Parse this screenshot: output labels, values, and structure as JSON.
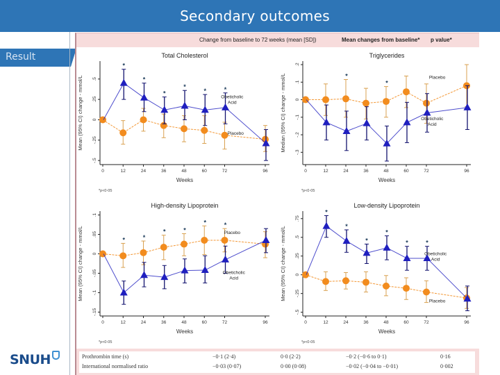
{
  "slide": {
    "title": "Secondary outcomes",
    "section_tab": "Result",
    "logo_text": "SNUH"
  },
  "table_header": {
    "col1": "Change from baseline to 72 weeks (mean [SD])",
    "col2": "Mean changes from baseline*",
    "col3": "p value*"
  },
  "table_rows": [
    {
      "label": "Prothrombin time (s)",
      "oca": "−0·1 (2·4)",
      "placebo": "0·0 (2·2)",
      "diff": "−0·2 (−0·6 to 0·1)",
      "p": "0·16"
    },
    {
      "label": "International normalised ratio",
      "oca": "−0·03 (0·07)",
      "placebo": "0·00 (0·08)",
      "diff": "−0·02 (−0·04 to −0·01)",
      "p": "0·002"
    }
  ],
  "colors": {
    "header_blue": "#2e75b6",
    "oca": "#1f1fbf",
    "oca_err": "#12126e",
    "placebo": "#f28c1e",
    "placebo_err": "#d9a150",
    "band_pink": "#f7dcdc"
  },
  "chart_data": [
    {
      "type": "line",
      "title": "Total Cholesterol",
      "xlabel": "Weeks",
      "ylabel": "Mean (95% CI) change - mmol/L",
      "x": [
        0,
        12,
        24,
        36,
        48,
        60,
        72,
        96
      ],
      "xticks": [
        "0",
        "12",
        "24",
        "36",
        "48",
        "60",
        "72",
        "96"
      ],
      "ylim": [
        -0.55,
        0.72
      ],
      "yticks": [
        -0.5,
        -0.25,
        0,
        0.25,
        0.5
      ],
      "ytick_labels": [
        "-.5",
        "-.25",
        "0",
        ".25",
        ".5"
      ],
      "footnote": "*p<0·05",
      "series": [
        {
          "name": "Obeticholic Acid",
          "label_lines": [
            "Obeticholic",
            "Acid"
          ],
          "marker": "triangle",
          "values": [
            0,
            0.45,
            0.27,
            0.12,
            0.17,
            0.12,
            0.15,
            -0.29
          ],
          "ci_low": [
            0,
            0.25,
            0.1,
            -0.05,
            0.0,
            -0.07,
            -0.05,
            -0.5
          ],
          "ci_high": [
            0,
            0.62,
            0.45,
            0.28,
            0.36,
            0.31,
            0.33,
            -0.12
          ]
        },
        {
          "name": "Placebo",
          "label_lines": [
            "Placebo"
          ],
          "marker": "circle",
          "values": [
            0,
            -0.16,
            0,
            -0.07,
            -0.11,
            -0.13,
            -0.19,
            -0.24
          ],
          "ci_low": [
            0,
            -0.3,
            -0.14,
            -0.22,
            -0.27,
            -0.29,
            -0.36,
            -0.39
          ],
          "ci_high": [
            0,
            -0.01,
            0.14,
            0.07,
            0.05,
            0.05,
            -0.03,
            -0.07
          ]
        }
      ],
      "significant": [
        12,
        24,
        36,
        48,
        60,
        72
      ]
    },
    {
      "type": "line",
      "title": "Triglycerides",
      "xlabel": "Weeks",
      "ylabel": "Median (95% CI) change - mmol/L",
      "x": [
        0,
        12,
        24,
        36,
        48,
        60,
        72,
        96
      ],
      "xticks": [
        "0",
        "12",
        "24",
        "36",
        "48",
        "60",
        "72",
        "96"
      ],
      "ylim": [
        -0.37,
        0.22
      ],
      "yticks": [
        -0.3,
        -0.2,
        -0.1,
        0,
        0.1,
        0.2
      ],
      "ytick_labels": [
        "-.3",
        "-.2",
        "-.1",
        "0",
        ".1",
        ".2"
      ],
      "footnote": "*p<0·05",
      "series": [
        {
          "name": "Obeticholic Acid",
          "label_lines": [
            "Obeticholic",
            "Acid"
          ],
          "marker": "triangle",
          "values": [
            0,
            -0.13,
            -0.18,
            -0.135,
            -0.25,
            -0.13,
            -0.075,
            -0.045
          ],
          "ci_low": [
            0,
            -0.23,
            -0.29,
            -0.23,
            -0.35,
            -0.245,
            -0.185,
            -0.17
          ],
          "ci_high": [
            0,
            -0.03,
            -0.065,
            -0.04,
            -0.15,
            -0.015,
            0.035,
            0.08
          ]
        },
        {
          "name": "Placebo",
          "label_lines": [
            "Placebo"
          ],
          "marker": "circle",
          "values": [
            0,
            0,
            0.005,
            -0.02,
            -0.01,
            0.045,
            -0.02,
            0.08
          ],
          "ci_low": [
            0,
            -0.09,
            -0.1,
            -0.11,
            -0.1,
            -0.045,
            -0.135,
            -0.04
          ],
          "ci_high": [
            0,
            0.09,
            0.115,
            0.065,
            0.075,
            0.135,
            0.09,
            0.2
          ]
        }
      ],
      "significant": [
        24,
        48
      ]
    },
    {
      "type": "line",
      "title": "High-density Lipoprotein",
      "xlabel": "Weeks",
      "ylabel": "Mean (95% CI) change - mmol/L",
      "x": [
        0,
        12,
        24,
        36,
        48,
        60,
        72,
        96
      ],
      "xticks": [
        "0",
        "12",
        "24",
        "36",
        "48",
        "60",
        "72",
        "96"
      ],
      "ylim": [
        -0.16,
        0.11
      ],
      "yticks": [
        -0.15,
        -0.1,
        -0.05,
        0,
        0.05,
        0.1
      ],
      "ytick_labels": [
        "-.15",
        "-.1",
        "-.05",
        "0",
        ".05",
        ".1"
      ],
      "footnote": "*p<0·05",
      "series": [
        {
          "name": "Obeticholic Acid",
          "label_lines": [
            "Obeticholic",
            "Acid"
          ],
          "marker": "triangle",
          "values": [
            0,
            -0.1,
            -0.055,
            -0.06,
            -0.043,
            -0.042,
            -0.015,
            0.035
          ],
          "ci_low": [
            0,
            -0.13,
            -0.085,
            -0.09,
            -0.075,
            -0.075,
            -0.05,
            0.003
          ],
          "ci_high": [
            0,
            -0.07,
            -0.022,
            -0.03,
            -0.013,
            -0.005,
            0.02,
            0.065
          ]
        },
        {
          "name": "Placebo",
          "label_lines": [
            "Placebo"
          ],
          "marker": "circle",
          "values": [
            0,
            -0.005,
            0.003,
            0.017,
            0.025,
            0.035,
            0.035,
            0.025
          ],
          "ci_low": [
            0,
            -0.035,
            -0.028,
            -0.015,
            -0.005,
            -0.002,
            0.005,
            -0.01
          ],
          "ci_high": [
            0,
            0.027,
            0.033,
            0.048,
            0.052,
            0.072,
            0.065,
            0.057
          ]
        }
      ],
      "significant": [
        12,
        24,
        36,
        48,
        60,
        72
      ]
    },
    {
      "type": "line",
      "title": "Low-density Lipoprotein",
      "xlabel": "Weeks",
      "ylabel": "Mean (95% CI) change - mmol/L",
      "x": [
        0,
        12,
        24,
        36,
        48,
        60,
        72,
        96
      ],
      "xticks": [
        "0",
        "12",
        "24",
        "36",
        "48",
        "60",
        "72",
        "96"
      ],
      "ylim": [
        -0.55,
        0.85
      ],
      "yticks": [
        -0.5,
        -0.25,
        0,
        0.25,
        0.5,
        0.75
      ],
      "ytick_labels": [
        "-.5",
        "-.25",
        "0",
        ".25",
        ".5",
        ".75"
      ],
      "footnote": "*p<0·05",
      "series": [
        {
          "name": "Obeticholic Acid",
          "label_lines": [
            "Obeticholic",
            "Acid"
          ],
          "marker": "triangle",
          "values": [
            0,
            0.65,
            0.45,
            0.29,
            0.36,
            0.22,
            0.22,
            -0.32
          ],
          "ci_low": [
            0,
            0.5,
            0.3,
            0.15,
            0.2,
            0.06,
            0.06,
            -0.48
          ],
          "ci_high": [
            0,
            0.79,
            0.6,
            0.41,
            0.52,
            0.38,
            0.38,
            -0.15
          ]
        },
        {
          "name": "Placebo",
          "label_lines": [
            "Placebo"
          ],
          "marker": "circle",
          "values": [
            0,
            -0.09,
            -0.08,
            -0.1,
            -0.15,
            -0.18,
            -0.23,
            -0.31
          ],
          "ci_low": [
            0,
            -0.21,
            -0.19,
            -0.23,
            -0.28,
            -0.33,
            -0.37,
            -0.45
          ],
          "ci_high": [
            0,
            0.04,
            0.03,
            0.04,
            -0.01,
            -0.04,
            -0.08,
            -0.17
          ]
        }
      ],
      "significant": [
        12,
        24,
        36,
        48,
        60,
        72
      ]
    }
  ]
}
